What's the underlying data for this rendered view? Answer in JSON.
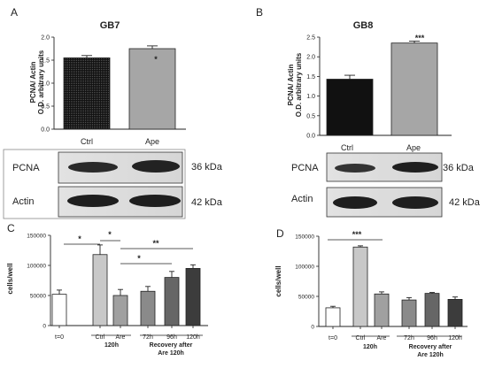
{
  "panels": {
    "A": {
      "letter": "A",
      "title": "GB7",
      "ylabel_line1": "PCNA/ Actin",
      "ylabel_line2": "O.D. arbitrary units",
      "categories": [
        "Ctrl",
        "Ape"
      ],
      "significance": "*",
      "blot": {
        "rows": [
          "PCNA",
          "Actin"
        ],
        "kda": [
          "36 kDa",
          "42 kDa"
        ]
      }
    },
    "B": {
      "letter": "B",
      "title": "GB8",
      "ylabel_line1": "PCNA/ Actin",
      "ylabel_line2": "O.D. arbitrary units",
      "categories": [
        "Ctrl",
        "Ape"
      ],
      "significance": "***",
      "blot": {
        "rows": [
          "PCNA",
          "Actin"
        ],
        "kda": [
          "36 kDa",
          "42 kDa"
        ]
      }
    },
    "C": {
      "letter": "C",
      "ylabel": "cells/well",
      "categories": [
        "t=0",
        "Ctrl",
        "Are",
        "72h",
        "96h",
        "120h"
      ],
      "group1": "120h",
      "group2_line1": "Recovery after",
      "group2_line2": "Are 120h",
      "sig_labels": [
        "*",
        "*",
        "**",
        "*"
      ]
    },
    "D": {
      "letter": "D",
      "ylabel": "cells/well",
      "categories": [
        "t=0",
        "Ctrl",
        "Are",
        "72h",
        "96h",
        "120h"
      ],
      "group1": "120h",
      "group2_line1": "Recovery after",
      "group2_line2": "Are 120h",
      "sig_labels": [
        "***"
      ]
    }
  },
  "chart_data": [
    {
      "panel": "A",
      "type": "bar",
      "title": "GB7",
      "categories": [
        "Ctrl",
        "Ape"
      ],
      "values": [
        1.55,
        1.75
      ],
      "errors": [
        0.05,
        0.06
      ],
      "ylim": [
        0,
        2.0
      ],
      "yticks": [
        "0.0",
        "0.5",
        "1.0",
        "1.5",
        "2.0"
      ],
      "ylabel": "PCNA/ Actin O.D. arbitrary units",
      "colors": [
        "#111111",
        "#a6a6a6"
      ],
      "annotation": "*"
    },
    {
      "panel": "B",
      "type": "bar",
      "title": "GB8",
      "categories": [
        "Ctrl",
        "Ape"
      ],
      "values": [
        1.43,
        2.35
      ],
      "errors": [
        0.1,
        0.05
      ],
      "ylim": [
        0,
        2.5
      ],
      "yticks": [
        "0.0",
        "0.5",
        "1.0",
        "1.5",
        "2.0",
        "2.5"
      ],
      "ylabel": "PCNA/ Actin O.D. arbitrary units",
      "colors": [
        "#111111",
        "#a6a6a6"
      ],
      "annotation": "***"
    },
    {
      "panel": "C",
      "type": "bar",
      "categories": [
        "t=0",
        "Ctrl",
        "Are",
        "72h",
        "96h",
        "120h"
      ],
      "values": [
        52000,
        118000,
        50000,
        57000,
        80000,
        95000
      ],
      "errors": [
        7000,
        16000,
        10000,
        8000,
        10000,
        6000
      ],
      "ylim": [
        0,
        150000
      ],
      "yticks": [
        "0",
        "50000",
        "100000",
        "150000"
      ],
      "ylabel": "cells/well",
      "colors": [
        "#ffffff",
        "#c8c8c8",
        "#a0a0a0",
        "#8a8a8a",
        "#666666",
        "#3c3c3c"
      ]
    },
    {
      "panel": "D",
      "type": "bar",
      "categories": [
        "t=0",
        "Ctrl",
        "Are",
        "72h",
        "96h",
        "120h"
      ],
      "values": [
        31000,
        132000,
        54000,
        44000,
        55000,
        45000
      ],
      "errors": [
        2500,
        2000,
        3500,
        4000,
        1500,
        4000
      ],
      "ylim": [
        0,
        150000
      ],
      "yticks": [
        "0",
        "50000",
        "100000",
        "150000"
      ],
      "ylabel": "cells/well",
      "colors": [
        "#ffffff",
        "#c8c8c8",
        "#a0a0a0",
        "#8a8a8a",
        "#666666",
        "#3c3c3c"
      ]
    }
  ]
}
